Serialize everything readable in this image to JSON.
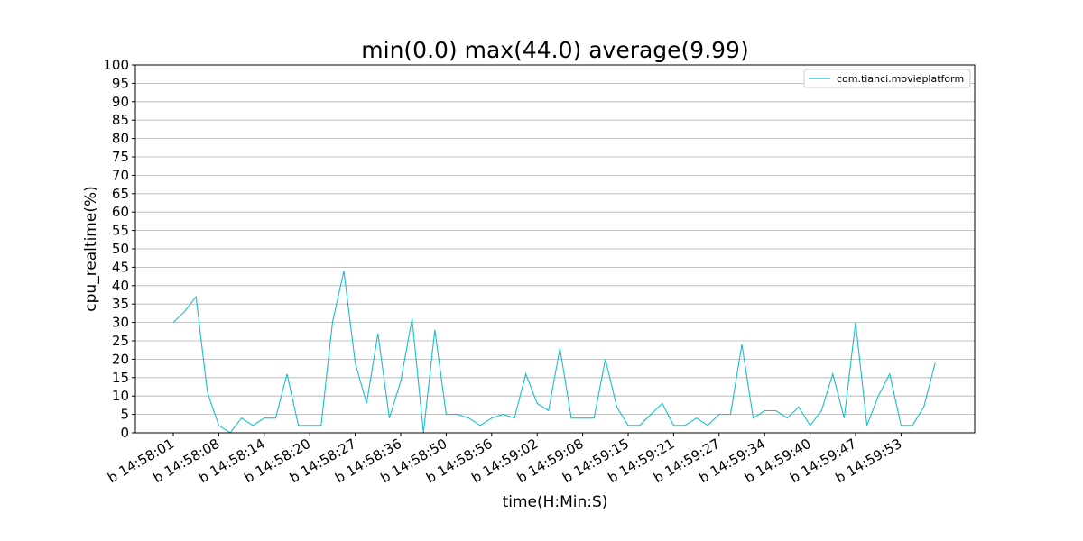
{
  "chart_data": {
    "type": "line",
    "title": "min(0.0) max(44.0) average(9.99)",
    "xlabel": "time(H:Min:S)",
    "ylabel": "cpu_realtime(%)",
    "ylim": [
      0,
      100
    ],
    "yticks": [
      0,
      5,
      10,
      15,
      20,
      25,
      30,
      35,
      40,
      45,
      50,
      55,
      60,
      65,
      70,
      75,
      80,
      85,
      90,
      95,
      100
    ],
    "xticks": [
      {
        "index": 0,
        "label": "b 14:58:01"
      },
      {
        "index": 4,
        "label": "b 14:58:08"
      },
      {
        "index": 8,
        "label": "b 14:58:14"
      },
      {
        "index": 12,
        "label": "b 14:58:20"
      },
      {
        "index": 16,
        "label": "b 14:58:27"
      },
      {
        "index": 20,
        "label": "b 14:58:36"
      },
      {
        "index": 24,
        "label": "b 14:58:50"
      },
      {
        "index": 28,
        "label": "b 14:58:56"
      },
      {
        "index": 32,
        "label": "b 14:59:02"
      },
      {
        "index": 36,
        "label": "b 14:59:08"
      },
      {
        "index": 40,
        "label": "b 14:59:15"
      },
      {
        "index": 44,
        "label": "b 14:59:21"
      },
      {
        "index": 48,
        "label": "b 14:59:27"
      },
      {
        "index": 52,
        "label": "b 14:59:34"
      },
      {
        "index": 56,
        "label": "b 14:59:40"
      },
      {
        "index": 60,
        "label": "b 14:59:47"
      },
      {
        "index": 64,
        "label": "b 14:59:53"
      }
    ],
    "grid": "horizontal",
    "legend_position": "top-right",
    "series": [
      {
        "name": "com.tianci.movieplatform",
        "color": "#17becf",
        "values": [
          30,
          33,
          37,
          11,
          2,
          0,
          4,
          2,
          4,
          4,
          16,
          2,
          2,
          2,
          30,
          44,
          19,
          8,
          27,
          4,
          14,
          31,
          0,
          28,
          5,
          5,
          4,
          2,
          4,
          5,
          4,
          16,
          8,
          6,
          23,
          4,
          4,
          4,
          20,
          7,
          2,
          2,
          5,
          8,
          2,
          2,
          4,
          2,
          5,
          5,
          24,
          4,
          6,
          6,
          4,
          7,
          2,
          6,
          16,
          4,
          30,
          2,
          10,
          16,
          2,
          2,
          7,
          19
        ]
      }
    ]
  }
}
